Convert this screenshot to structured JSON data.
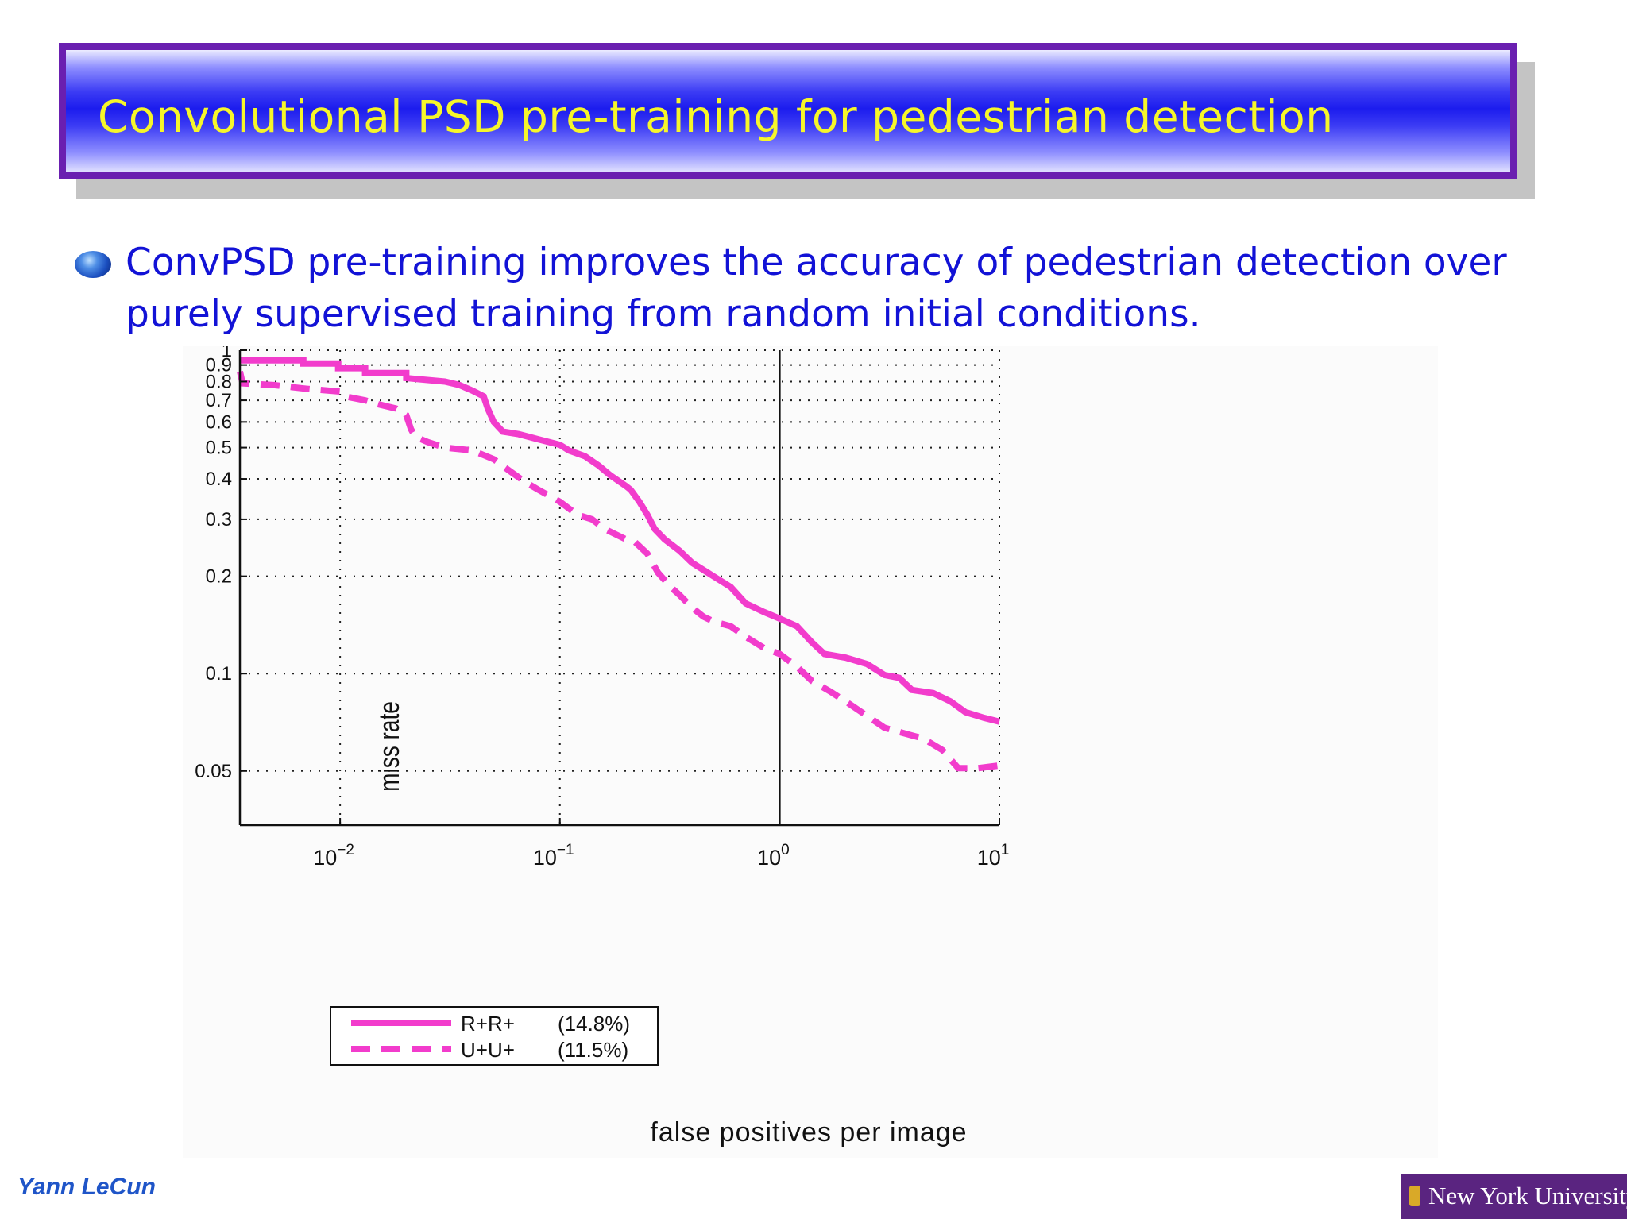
{
  "title": "Convolutional PSD pre-training for pedestrian detection",
  "bullet": "ConvPSD pre-training improves the accuracy of pedestrian detection over purely supervised training from random initial conditions.",
  "footer": {
    "author": "Yann LeCun",
    "institution": "New York University"
  },
  "colors": {
    "title_text": "#f6f62a",
    "title_border": "#6a1fb0",
    "bullet_text": "#1212d6",
    "series": "#f23ccc",
    "author": "#1f55c8",
    "nyu": "#5a2480"
  },
  "chart_data": {
    "type": "line",
    "xlabel": "false positives per image",
    "ylabel": "miss rate",
    "xscale": "log",
    "yscale": "log",
    "xlim": [
      0.0035,
      10
    ],
    "ylim": [
      0.034,
      1
    ],
    "grid": true,
    "x_ticks": [
      {
        "value": 0.01,
        "base": "10",
        "exp": "−2"
      },
      {
        "value": 0.1,
        "base": "10",
        "exp": "−1"
      },
      {
        "value": 1,
        "base": "10",
        "exp": "0"
      },
      {
        "value": 10,
        "base": "10",
        "exp": "1"
      }
    ],
    "y_ticks": [
      {
        "value": 0.05,
        "label": "0.05"
      },
      {
        "value": 0.1,
        "label": "0.1"
      },
      {
        "value": 0.2,
        "label": "0.2"
      },
      {
        "value": 0.3,
        "label": "0.3"
      },
      {
        "value": 0.4,
        "label": "0.4"
      },
      {
        "value": 0.5,
        "label": "0.5"
      },
      {
        "value": 0.6,
        "label": "0.6"
      },
      {
        "value": 0.7,
        "label": "0.7"
      },
      {
        "value": 0.8,
        "label": "0.8"
      },
      {
        "value": 0.9,
        "label": "0.9"
      },
      {
        "value": 1,
        "label": "1"
      }
    ],
    "reference_line_x": 1,
    "legend_position": "bottom-left",
    "series": [
      {
        "name": "R+R+",
        "value_label": "(14.8%)",
        "style": "solid",
        "points": [
          [
            0.0035,
            0.93
          ],
          [
            0.0068,
            0.93
          ],
          [
            0.0068,
            0.91
          ],
          [
            0.0098,
            0.91
          ],
          [
            0.0098,
            0.88
          ],
          [
            0.013,
            0.88
          ],
          [
            0.013,
            0.85
          ],
          [
            0.02,
            0.85
          ],
          [
            0.02,
            0.82
          ],
          [
            0.03,
            0.8
          ],
          [
            0.035,
            0.78
          ],
          [
            0.04,
            0.75
          ],
          [
            0.045,
            0.72
          ],
          [
            0.047,
            0.66
          ],
          [
            0.05,
            0.6
          ],
          [
            0.055,
            0.56
          ],
          [
            0.065,
            0.55
          ],
          [
            0.08,
            0.53
          ],
          [
            0.1,
            0.51
          ],
          [
            0.11,
            0.49
          ],
          [
            0.13,
            0.47
          ],
          [
            0.15,
            0.44
          ],
          [
            0.17,
            0.41
          ],
          [
            0.2,
            0.38
          ],
          [
            0.21,
            0.37
          ],
          [
            0.23,
            0.34
          ],
          [
            0.25,
            0.31
          ],
          [
            0.27,
            0.28
          ],
          [
            0.3,
            0.26
          ],
          [
            0.35,
            0.24
          ],
          [
            0.4,
            0.22
          ],
          [
            0.5,
            0.2
          ],
          [
            0.6,
            0.185
          ],
          [
            0.7,
            0.165
          ],
          [
            0.85,
            0.155
          ],
          [
            1.0,
            0.148
          ],
          [
            1.2,
            0.14
          ],
          [
            1.4,
            0.125
          ],
          [
            1.6,
            0.115
          ],
          [
            2.0,
            0.112
          ],
          [
            2.5,
            0.107
          ],
          [
            3.0,
            0.099
          ],
          [
            3.5,
            0.097
          ],
          [
            4.0,
            0.089
          ],
          [
            5.0,
            0.087
          ],
          [
            6.0,
            0.082
          ],
          [
            7.0,
            0.076
          ],
          [
            8.5,
            0.073
          ],
          [
            10,
            0.071
          ]
        ]
      },
      {
        "name": "U+U+",
        "value_label": "(11.5%)",
        "style": "dashed",
        "points": [
          [
            0.0035,
            0.86
          ],
          [
            0.0036,
            0.79
          ],
          [
            0.005,
            0.78
          ],
          [
            0.007,
            0.76
          ],
          [
            0.01,
            0.745
          ],
          [
            0.0105,
            0.72
          ],
          [
            0.013,
            0.7
          ],
          [
            0.015,
            0.68
          ],
          [
            0.018,
            0.66
          ],
          [
            0.02,
            0.63
          ],
          [
            0.021,
            0.57
          ],
          [
            0.022,
            0.54
          ],
          [
            0.025,
            0.52
          ],
          [
            0.03,
            0.5
          ],
          [
            0.04,
            0.49
          ],
          [
            0.05,
            0.46
          ],
          [
            0.06,
            0.42
          ],
          [
            0.07,
            0.39
          ],
          [
            0.08,
            0.37
          ],
          [
            0.1,
            0.34
          ],
          [
            0.12,
            0.31
          ],
          [
            0.14,
            0.3
          ],
          [
            0.16,
            0.28
          ],
          [
            0.2,
            0.26
          ],
          [
            0.22,
            0.255
          ],
          [
            0.25,
            0.235
          ],
          [
            0.28,
            0.205
          ],
          [
            0.32,
            0.185
          ],
          [
            0.35,
            0.175
          ],
          [
            0.4,
            0.16
          ],
          [
            0.45,
            0.15
          ],
          [
            0.5,
            0.145
          ],
          [
            0.6,
            0.14
          ],
          [
            0.7,
            0.13
          ],
          [
            0.85,
            0.12
          ],
          [
            1.0,
            0.115
          ],
          [
            1.2,
            0.105
          ],
          [
            1.4,
            0.095
          ],
          [
            1.7,
            0.088
          ],
          [
            2.0,
            0.082
          ],
          [
            2.5,
            0.074
          ],
          [
            3.0,
            0.068
          ],
          [
            3.5,
            0.066
          ],
          [
            4.5,
            0.063
          ],
          [
            5.5,
            0.058
          ],
          [
            6.5,
            0.051
          ],
          [
            8,
            0.051
          ],
          [
            10,
            0.052
          ]
        ]
      }
    ]
  }
}
